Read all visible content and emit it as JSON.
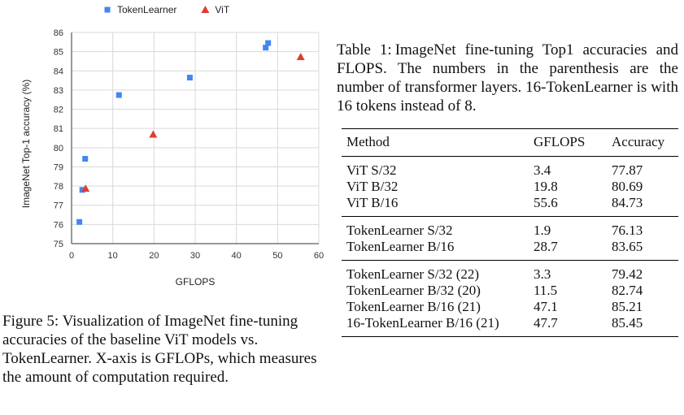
{
  "figure": {
    "label": "Figure 5:",
    "text": "Visualization of ImageNet fine-tuning accuracies of the baseline ViT models vs. TokenLearner. X-axis is GFLOPs, which measures the amount of computation required."
  },
  "table_caption": {
    "label": "Table 1:",
    "text": "ImageNet fine-tuning Top1 accuracies and FLOPS. The numbers in the parenthesis are the number of transformer layers. 16-TokenLearner is with 16 tokens instead of 8."
  },
  "table": {
    "headers": [
      "Method",
      "GFLOPS",
      "Accuracy"
    ],
    "groups": [
      [
        {
          "method": "ViT S/32",
          "gflops": "3.4",
          "accuracy": "77.87"
        },
        {
          "method": "ViT B/32",
          "gflops": "19.8",
          "accuracy": "80.69"
        },
        {
          "method": "ViT B/16",
          "gflops": "55.6",
          "accuracy": "84.73"
        }
      ],
      [
        {
          "method": "TokenLearner S/32",
          "gflops": "1.9",
          "accuracy": "76.13"
        },
        {
          "method": "TokenLearner B/16",
          "gflops": "28.7",
          "accuracy": "83.65"
        }
      ],
      [
        {
          "method": "TokenLearner S/32 (22)",
          "gflops": "3.3",
          "accuracy": "79.42"
        },
        {
          "method": "TokenLearner B/32 (20)",
          "gflops": "11.5",
          "accuracy": "82.74"
        },
        {
          "method": "TokenLearner B/16 (21)",
          "gflops": "47.1",
          "accuracy": "85.21"
        },
        {
          "method": "16-TokenLearner B/16 (21)",
          "gflops": "47.7",
          "accuracy": "85.45"
        }
      ]
    ]
  },
  "chart_data": {
    "type": "scatter",
    "title": "",
    "xlabel": "GFLOPS",
    "ylabel": "ImageNet Top-1 accuracy (%)",
    "xlim": [
      0,
      60
    ],
    "ylim": [
      75,
      86
    ],
    "xticks": [
      0,
      10,
      20,
      30,
      40,
      50,
      60
    ],
    "yticks": [
      75,
      76,
      77,
      78,
      79,
      80,
      81,
      82,
      83,
      84,
      85,
      86
    ],
    "grid": true,
    "legend_position": "top",
    "series": [
      {
        "name": "TokenLearner",
        "marker": "square",
        "color": "#4285f4",
        "points": [
          [
            1.9,
            76.13
          ],
          [
            28.7,
            83.65
          ],
          [
            3.3,
            79.42
          ],
          [
            11.5,
            82.74
          ],
          [
            47.1,
            85.21
          ],
          [
            47.7,
            85.45
          ],
          [
            2.6,
            77.8
          ]
        ]
      },
      {
        "name": "ViT",
        "marker": "triangle",
        "color": "#e03c31",
        "points": [
          [
            3.4,
            77.87
          ],
          [
            19.8,
            80.69
          ],
          [
            55.6,
            84.73
          ]
        ]
      }
    ]
  }
}
